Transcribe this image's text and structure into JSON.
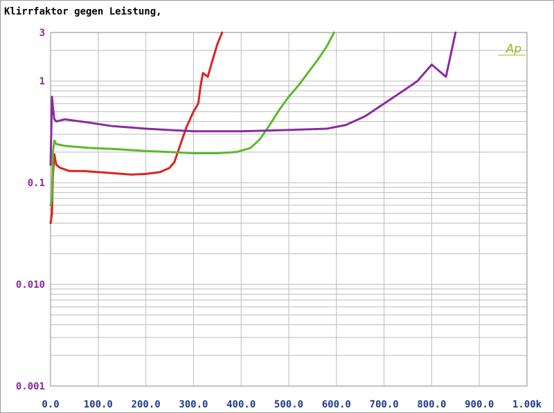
{
  "chart_data": {
    "type": "line",
    "title": "Klirrfaktor gegen Leistung,",
    "corner_label": "Ap",
    "xlabel": "",
    "ylabel": "",
    "xlim": [
      0,
      1000
    ],
    "ylim": [
      0.001,
      3
    ],
    "y_scale": "log",
    "grid": true,
    "x_ticks": [
      0,
      100,
      200,
      300,
      400,
      500,
      600,
      700,
      800,
      900,
      1000
    ],
    "x_tick_labels": [
      "0.0",
      "100.0",
      "200.0",
      "300.0",
      "400.0",
      "500.0",
      "600.0",
      "700.0",
      "800.0",
      "900.0",
      "1.00k"
    ],
    "y_ticks": [
      0.001,
      0.01,
      0.1,
      1,
      3
    ],
    "y_tick_labels": [
      "0.001",
      "0.010",
      "0.1",
      "1",
      "3"
    ],
    "colors": {
      "tick_y": "#8b2aa0",
      "tick_x": "#1f3a8a",
      "grid": "#bbbbbb",
      "corner_label": "#9ab520"
    },
    "series": [
      {
        "color": "#e02020",
        "x": [
          0,
          3,
          5,
          8,
          12,
          20,
          40,
          70,
          120,
          170,
          200,
          230,
          250,
          260,
          270,
          285,
          300,
          310,
          315,
          320,
          330,
          340,
          350,
          360
        ],
        "y": [
          0.04,
          0.05,
          0.12,
          0.19,
          0.15,
          0.14,
          0.13,
          0.13,
          0.125,
          0.12,
          0.122,
          0.127,
          0.14,
          0.16,
          0.22,
          0.35,
          0.5,
          0.6,
          0.9,
          1.2,
          1.1,
          1.6,
          2.3,
          3
        ]
      },
      {
        "color": "#5cb82a",
        "x": [
          0,
          3,
          5,
          8,
          12,
          30,
          80,
          130,
          200,
          250,
          300,
          350,
          390,
          420,
          440,
          460,
          480,
          500,
          520,
          540,
          560,
          580,
          595
        ],
        "y": [
          0.06,
          0.07,
          0.2,
          0.26,
          0.24,
          0.23,
          0.22,
          0.215,
          0.205,
          0.2,
          0.195,
          0.195,
          0.2,
          0.22,
          0.27,
          0.37,
          0.52,
          0.7,
          0.9,
          1.2,
          1.6,
          2.2,
          3
        ]
      },
      {
        "color": "#8b2aa0",
        "x": [
          0,
          3,
          5,
          8,
          12,
          30,
          80,
          130,
          200,
          300,
          400,
          500,
          580,
          620,
          660,
          700,
          740,
          770,
          800,
          830,
          850
        ],
        "y": [
          0.15,
          0.7,
          0.55,
          0.42,
          0.4,
          0.42,
          0.39,
          0.36,
          0.34,
          0.32,
          0.32,
          0.33,
          0.34,
          0.37,
          0.45,
          0.6,
          0.8,
          1.0,
          1.45,
          1.1,
          3
        ]
      }
    ]
  }
}
